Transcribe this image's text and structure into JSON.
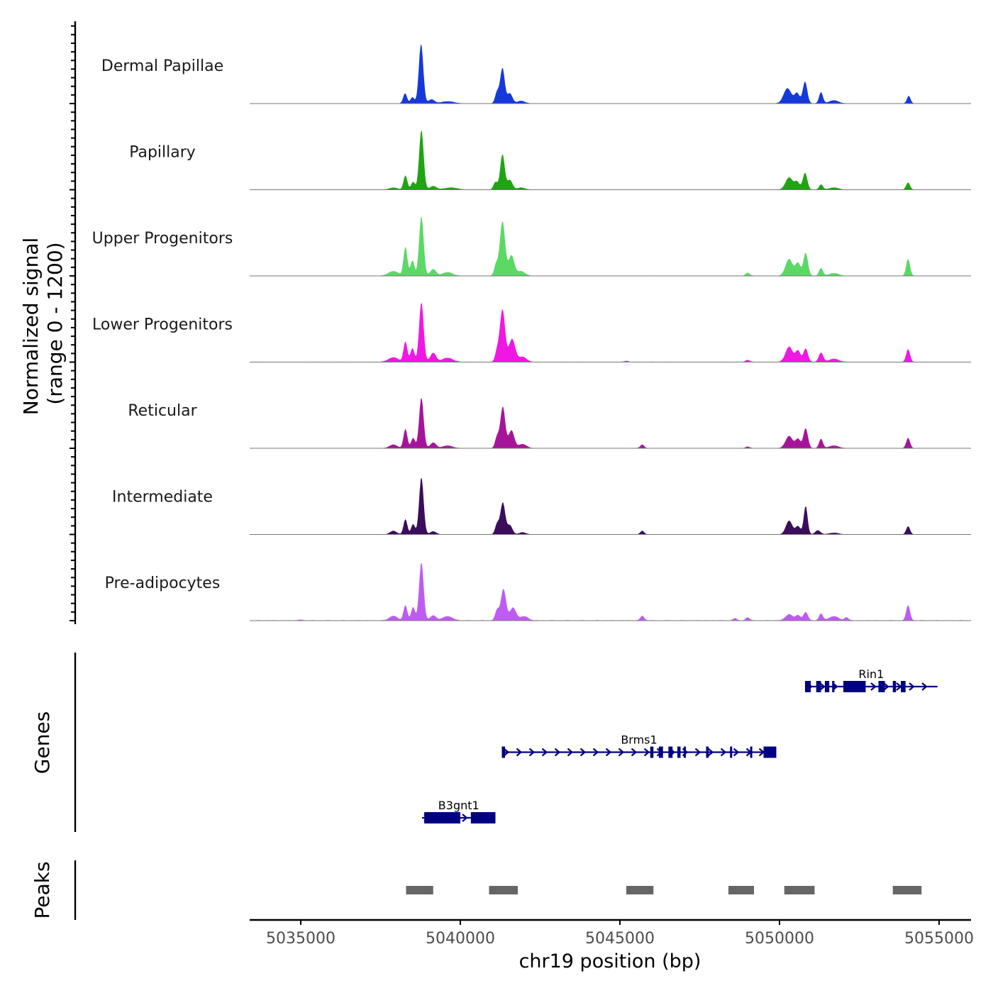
{
  "chart_data": {
    "type": "area",
    "y_axis_title": "Normalized signal",
    "y_axis_range_label": "(range 0 - 1200)",
    "ylim": [
      0,
      1200
    ],
    "xlabel": "chr19 position (bp)",
    "xlim": [
      5033400,
      5056000
    ],
    "x_ticks": [
      5035000,
      5040000,
      5045000,
      5050000,
      5055000
    ],
    "x_tick_labels": [
      "5035000",
      "5040000",
      "5045000",
      "5050000",
      "5055000"
    ],
    "signal_range": [
      5033400,
      5056000
    ],
    "tracks": [
      {
        "name": "Dermal Papillae",
        "color": "#1539DB",
        "peaks": [
          [
            5038270,
            200,
            60
          ],
          [
            5038500,
            120,
            60
          ],
          [
            5038770,
            1180,
            70
          ],
          [
            5039100,
            80,
            90
          ],
          [
            5039600,
            40,
            200
          ],
          [
            5041150,
            220,
            60
          ],
          [
            5041320,
            700,
            70
          ],
          [
            5041550,
            200,
            80
          ],
          [
            5041900,
            50,
            120
          ],
          [
            5050250,
            300,
            120
          ],
          [
            5050550,
            200,
            80
          ],
          [
            5050800,
            430,
            70
          ],
          [
            5051300,
            220,
            60
          ],
          [
            5051700,
            60,
            150
          ],
          [
            5054050,
            150,
            55
          ]
        ],
        "base": 6
      },
      {
        "name": "Papillary",
        "color": "#1FA512",
        "peaks": [
          [
            5037900,
            40,
            120
          ],
          [
            5038280,
            280,
            60
          ],
          [
            5038520,
            150,
            60
          ],
          [
            5038780,
            1180,
            70
          ],
          [
            5039150,
            70,
            100
          ],
          [
            5039700,
            40,
            200
          ],
          [
            5041100,
            150,
            60
          ],
          [
            5041320,
            700,
            70
          ],
          [
            5041550,
            190,
            80
          ],
          [
            5041900,
            40,
            120
          ],
          [
            5050300,
            240,
            110
          ],
          [
            5050550,
            150,
            80
          ],
          [
            5050800,
            330,
            70
          ],
          [
            5051300,
            100,
            60
          ],
          [
            5051700,
            40,
            150
          ],
          [
            5054030,
            140,
            60
          ]
        ],
        "base": 6
      },
      {
        "name": "Upper Progenitors",
        "color": "#5AD965",
        "peaks": [
          [
            5037900,
            90,
            150
          ],
          [
            5038280,
            570,
            60
          ],
          [
            5038500,
            300,
            60
          ],
          [
            5038780,
            1180,
            70
          ],
          [
            5039150,
            130,
            90
          ],
          [
            5039600,
            70,
            150
          ],
          [
            5041120,
            220,
            60
          ],
          [
            5041320,
            1080,
            80
          ],
          [
            5041600,
            400,
            90
          ],
          [
            5041900,
            90,
            120
          ],
          [
            5049000,
            60,
            60
          ],
          [
            5050300,
            330,
            110
          ],
          [
            5050580,
            250,
            80
          ],
          [
            5050820,
            450,
            70
          ],
          [
            5051300,
            150,
            60
          ],
          [
            5051700,
            50,
            150
          ],
          [
            5054030,
            330,
            60
          ]
        ],
        "base": 8
      },
      {
        "name": "Lower Progenitors",
        "color": "#F017E3",
        "peaks": [
          [
            5037900,
            90,
            150
          ],
          [
            5038280,
            400,
            60
          ],
          [
            5038500,
            270,
            60
          ],
          [
            5038780,
            1180,
            70
          ],
          [
            5039150,
            180,
            90
          ],
          [
            5039600,
            80,
            160
          ],
          [
            5041150,
            200,
            60
          ],
          [
            5041320,
            1040,
            80
          ],
          [
            5041620,
            450,
            100
          ],
          [
            5041950,
            100,
            120
          ],
          [
            5045200,
            20,
            60
          ],
          [
            5049000,
            40,
            60
          ],
          [
            5050300,
            300,
            110
          ],
          [
            5050580,
            220,
            80
          ],
          [
            5050820,
            260,
            70
          ],
          [
            5051300,
            180,
            70
          ],
          [
            5051700,
            60,
            150
          ],
          [
            5054030,
            250,
            60
          ]
        ],
        "base": 8
      },
      {
        "name": "Reticular",
        "color": "#A6149A",
        "peaks": [
          [
            5037900,
            70,
            120
          ],
          [
            5038280,
            380,
            60
          ],
          [
            5038520,
            200,
            60
          ],
          [
            5038780,
            1000,
            70
          ],
          [
            5039150,
            110,
            90
          ],
          [
            5039600,
            50,
            150
          ],
          [
            5041150,
            220,
            60
          ],
          [
            5041330,
            820,
            75
          ],
          [
            5041600,
            350,
            90
          ],
          [
            5041950,
            80,
            120
          ],
          [
            5045700,
            70,
            60
          ],
          [
            5049000,
            30,
            60
          ],
          [
            5050300,
            240,
            110
          ],
          [
            5050580,
            180,
            80
          ],
          [
            5050820,
            390,
            70
          ],
          [
            5051300,
            180,
            60
          ],
          [
            5051700,
            50,
            150
          ],
          [
            5054030,
            200,
            60
          ]
        ],
        "base": 6
      },
      {
        "name": "Intermediate",
        "color": "#3B0E5C",
        "peaks": [
          [
            5037900,
            70,
            100
          ],
          [
            5038280,
            300,
            60
          ],
          [
            5038520,
            200,
            60
          ],
          [
            5038780,
            1130,
            70
          ],
          [
            5039150,
            60,
            90
          ],
          [
            5041150,
            200,
            60
          ],
          [
            5041330,
            630,
            75
          ],
          [
            5041550,
            180,
            80
          ],
          [
            5041950,
            40,
            100
          ],
          [
            5045700,
            70,
            60
          ],
          [
            5050300,
            270,
            100
          ],
          [
            5050580,
            160,
            80
          ],
          [
            5050820,
            560,
            60
          ],
          [
            5051200,
            80,
            80
          ],
          [
            5051700,
            30,
            150
          ],
          [
            5054030,
            160,
            60
          ]
        ],
        "base": 5
      },
      {
        "name": "Pre-adipocytes",
        "color": "#BE5CF2",
        "peaks": [
          [
            5035000,
            15,
            60
          ],
          [
            5037900,
            90,
            120
          ],
          [
            5038280,
            300,
            60
          ],
          [
            5038520,
            260,
            60
          ],
          [
            5038780,
            1150,
            70
          ],
          [
            5039150,
            100,
            90
          ],
          [
            5039600,
            80,
            150
          ],
          [
            5041150,
            200,
            60
          ],
          [
            5041350,
            620,
            80
          ],
          [
            5041650,
            250,
            100
          ],
          [
            5042000,
            80,
            120
          ],
          [
            5045700,
            90,
            60
          ],
          [
            5048600,
            40,
            60
          ],
          [
            5049000,
            60,
            60
          ],
          [
            5050300,
            120,
            110
          ],
          [
            5050580,
            100,
            80
          ],
          [
            5050820,
            160,
            70
          ],
          [
            5051300,
            130,
            60
          ],
          [
            5051700,
            80,
            150
          ],
          [
            5052100,
            60,
            60
          ],
          [
            5054030,
            300,
            60
          ]
        ],
        "base": 10
      }
    ],
    "genes_axis_title": "Genes",
    "gene_color": "#000080",
    "genes": [
      {
        "name": "Rin1",
        "row": 1,
        "start": 5050800,
        "end": 5054950,
        "exons": [
          [
            5050800,
            5050980
          ],
          [
            5051150,
            5051300
          ],
          [
            5051420,
            5051560
          ],
          [
            5051650,
            5051720
          ],
          [
            5052000,
            5052700
          ],
          [
            5053100,
            5053300
          ],
          [
            5053550,
            5053650
          ],
          [
            5053800,
            5053950
          ]
        ]
      },
      {
        "name": "Brms1",
        "row": 2,
        "start": 5041300,
        "end": 5049900,
        "exons": [
          [
            5041300,
            5041400
          ],
          [
            5045950,
            5046050
          ],
          [
            5046220,
            5046350
          ],
          [
            5046520,
            5046650
          ],
          [
            5046800,
            5046900
          ],
          [
            5047000,
            5047060
          ],
          [
            5047700,
            5047780
          ],
          [
            5048450,
            5048500
          ],
          [
            5049080,
            5049120
          ],
          [
            5049500,
            5049900
          ]
        ]
      },
      {
        "name": "B3gnt1",
        "row": 3,
        "start": 5038800,
        "end": 5041100,
        "exons": [
          [
            5038870,
            5040000
          ],
          [
            5040330,
            5041100
          ]
        ]
      }
    ],
    "peaks_axis_title": "Peaks",
    "peak_color": "#666666",
    "peak_regions": [
      [
        5038300,
        5039150
      ],
      [
        5040900,
        5041800
      ],
      [
        5045200,
        5046050
      ],
      [
        5048400,
        5049200
      ],
      [
        5050150,
        5051100
      ],
      [
        5053550,
        5054450
      ]
    ]
  }
}
